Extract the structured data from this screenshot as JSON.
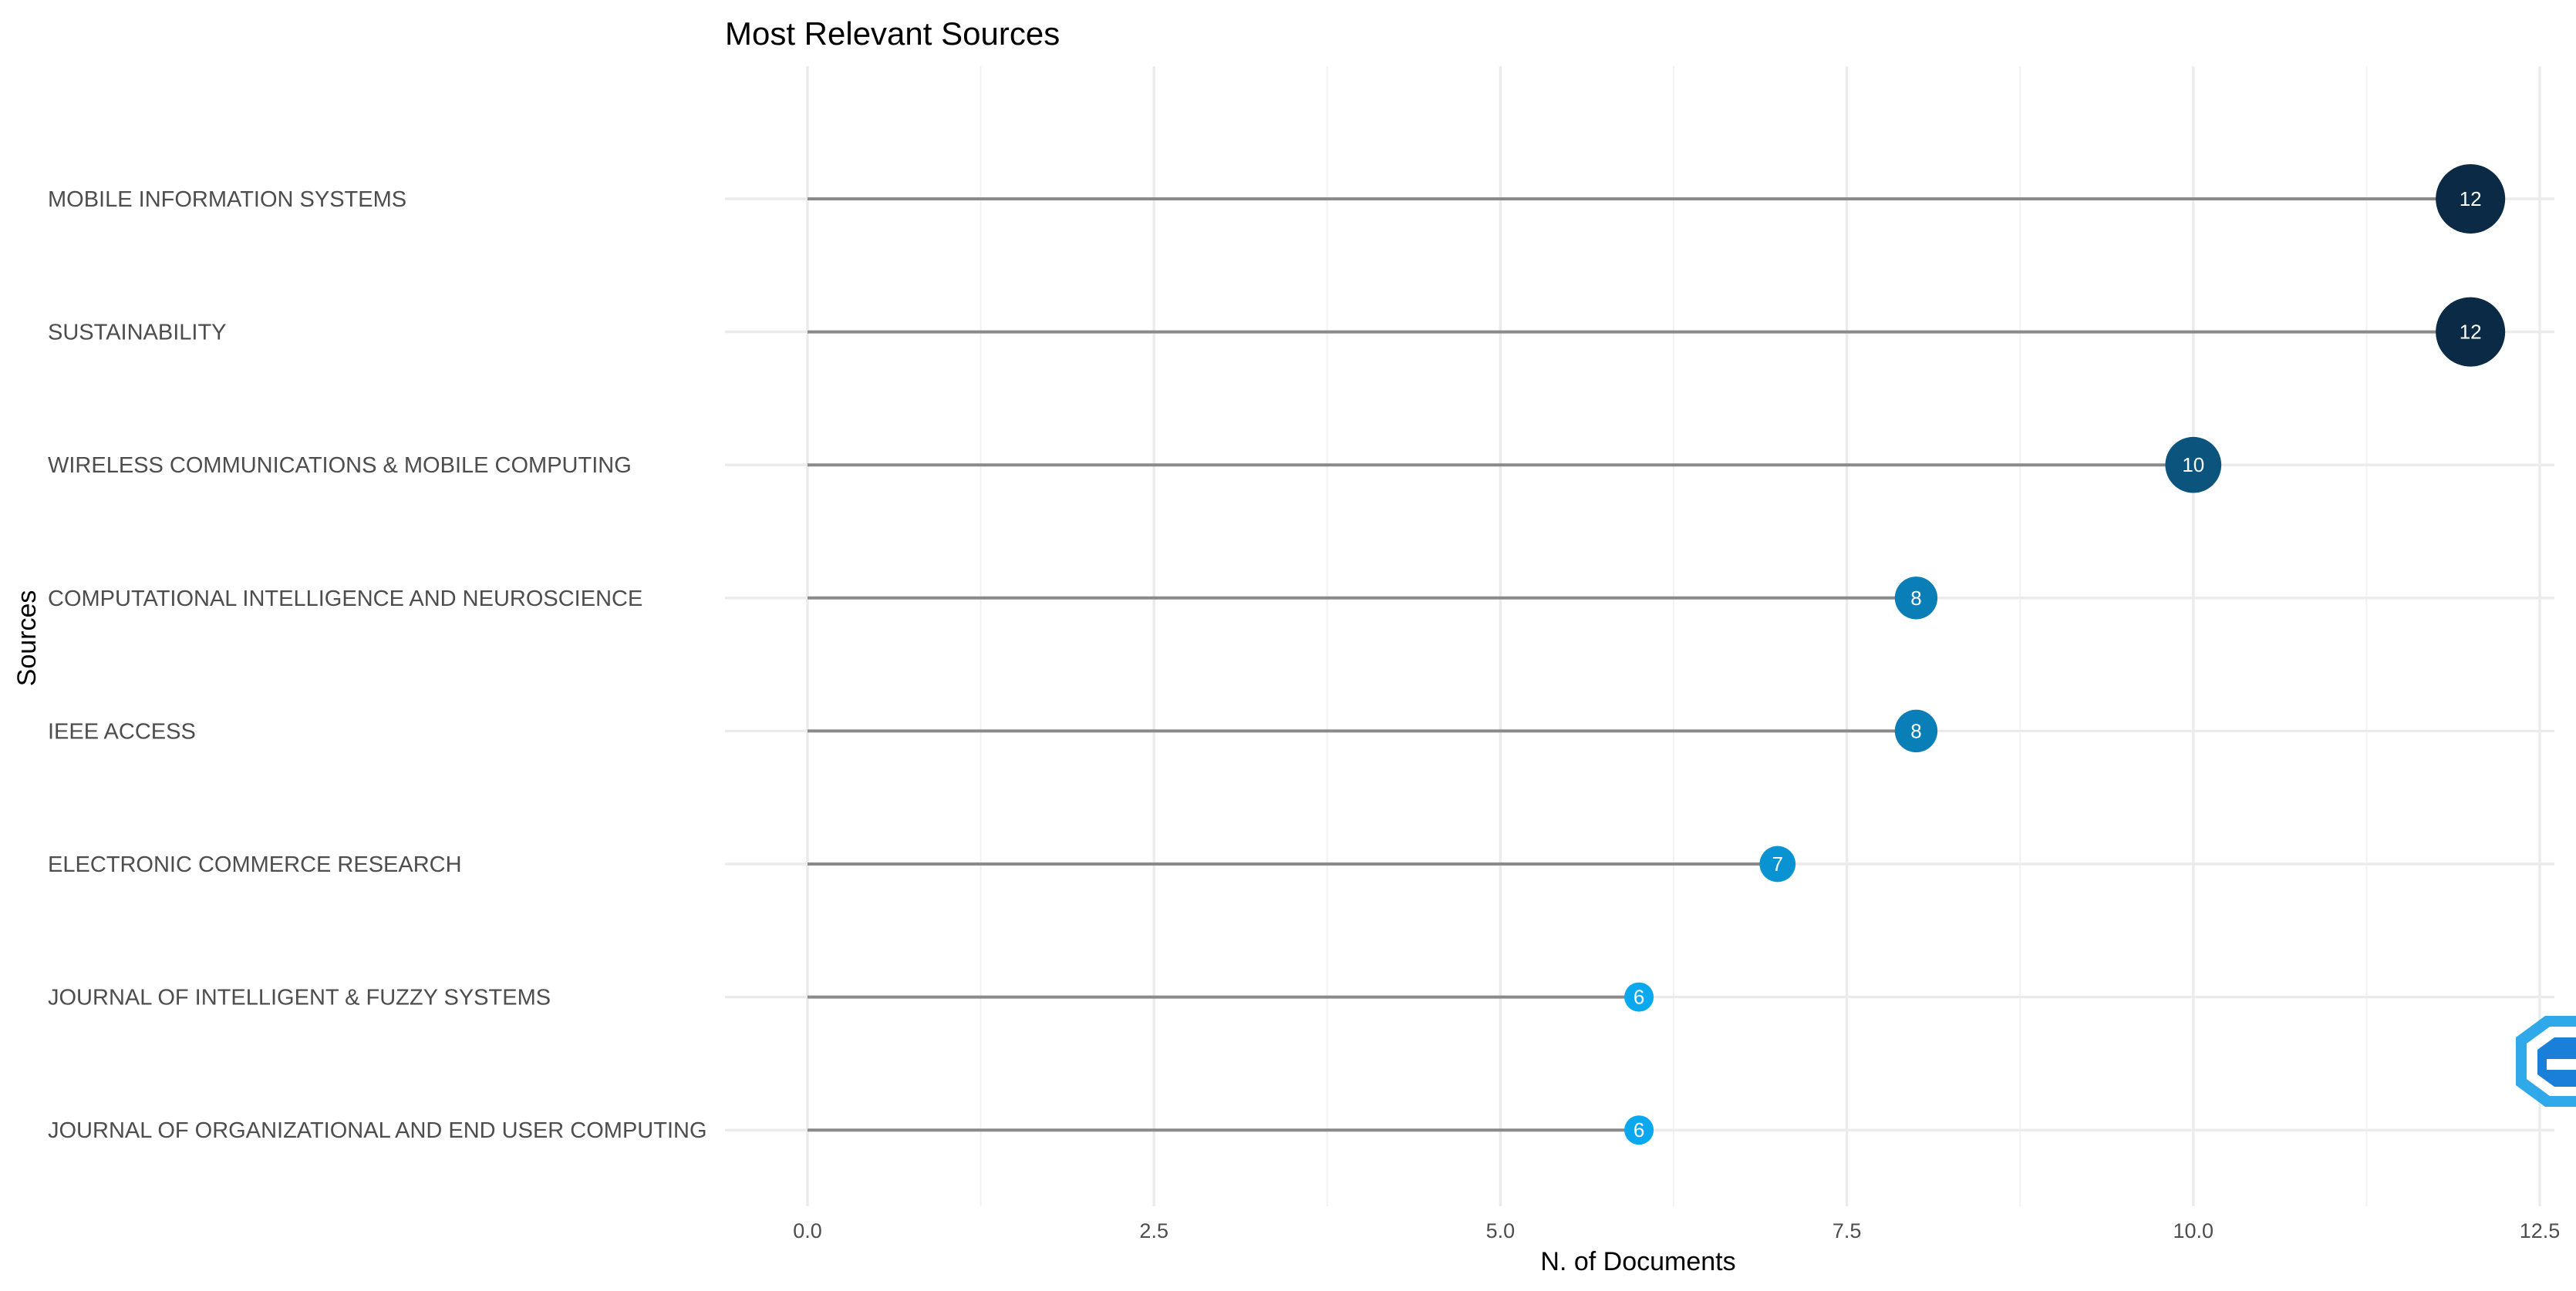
{
  "chart_data": {
    "type": "lollipop",
    "title": "Most Relevant Sources",
    "xlabel": "N. of Documents",
    "ylabel": "Sources",
    "xlim": [
      -0.25,
      12.6
    ],
    "xticks": [
      "0.0",
      "2.5",
      "5.0",
      "7.5",
      "10.0",
      "12.5"
    ],
    "grid": true,
    "colors": {
      "low": "#0aa8ee",
      "high": "#0a2a45",
      "stem": "#8a8a8a"
    },
    "sources": [
      {
        "label": "MOBILE INFORMATION SYSTEMS",
        "value": 12
      },
      {
        "label": "SUSTAINABILITY",
        "value": 12
      },
      {
        "label": "WIRELESS COMMUNICATIONS & MOBILE COMPUTING",
        "value": 10
      },
      {
        "label": "COMPUTATIONAL INTELLIGENCE AND NEUROSCIENCE",
        "value": 8
      },
      {
        "label": "IEEE ACCESS",
        "value": 8
      },
      {
        "label": "ELECTRONIC COMMERCE RESEARCH",
        "value": 7
      },
      {
        "label": "JOURNAL OF INTELLIGENT & FUZZY SYSTEMS",
        "value": 6
      },
      {
        "label": "JOURNAL OF ORGANIZATIONAL AND END USER COMPUTING",
        "value": 6
      }
    ]
  },
  "watermark": {
    "icon": "bibliometrix-logo-icon",
    "color": "#1aa0e8"
  }
}
